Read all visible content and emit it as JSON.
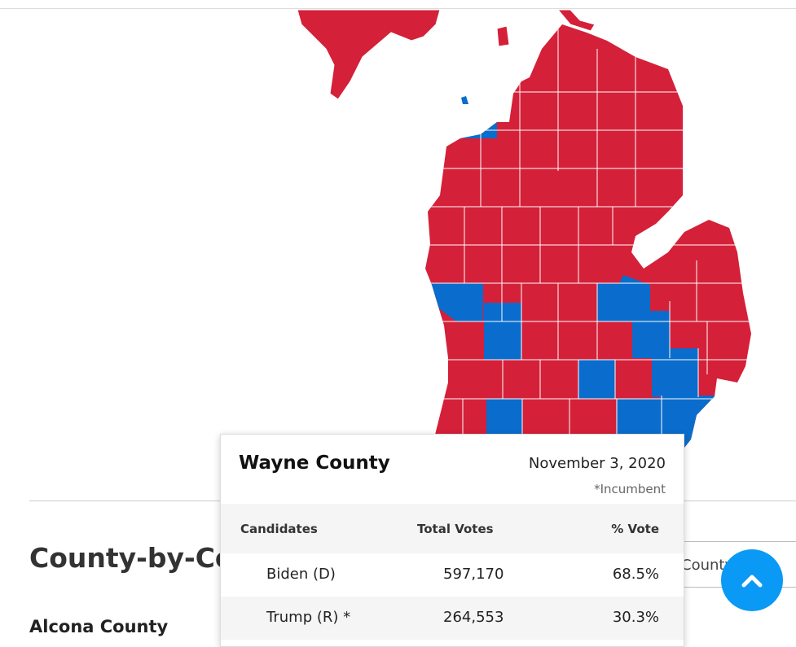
{
  "page": {
    "section_heading": "County-by-Co",
    "county_label": "Alcona County",
    "select_label": "County"
  },
  "tooltip": {
    "title": "Wayne County",
    "date": "November 3, 2020",
    "note": "*Incumbent",
    "table": {
      "headers": [
        "Candidates",
        "Total Votes",
        "% Vote"
      ],
      "rows": [
        [
          "Biden (D)",
          "597,170",
          "68.5%"
        ],
        [
          "Trump (R) *",
          "264,553",
          "30.3%"
        ]
      ]
    }
  }
}
